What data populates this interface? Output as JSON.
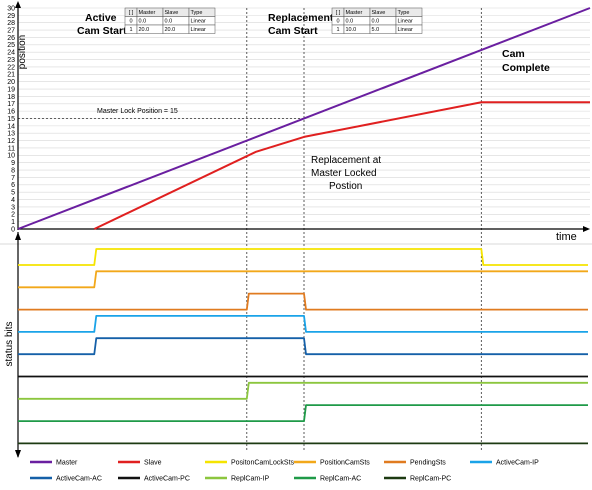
{
  "chart_data": {
    "type": "line",
    "top_panel": {
      "ylabel": "position",
      "xlabel": "time",
      "ylim": [
        0,
        30
      ],
      "xlim": [
        0,
        30
      ],
      "yticks": [
        "0",
        "1",
        "2",
        "3",
        "4",
        "5",
        "6",
        "7",
        "8",
        "9",
        "10",
        "11",
        "12",
        "13",
        "14",
        "15",
        "16",
        "17",
        "18",
        "19",
        "20",
        "21",
        "22",
        "23",
        "24",
        "25",
        "26",
        "27",
        "28",
        "29",
        "30"
      ],
      "series": [
        {
          "name": "Master",
          "color": "#6a1fa0",
          "points": [
            [
              0,
              0
            ],
            [
              30,
              30
            ]
          ]
        },
        {
          "name": "Slave",
          "color": "#e02020",
          "points": [
            [
              4,
              0
            ],
            [
              12.5,
              10.5
            ],
            [
              15,
              12.5
            ],
            [
              24.3,
              17.2
            ],
            [
              30,
              17.2
            ]
          ]
        }
      ],
      "lock_line": {
        "label": "Master Lock Position = 15",
        "y": 15
      },
      "events": [
        {
          "t": 12,
          "title_lines": [
            "Active",
            "Cam Start"
          ]
        },
        {
          "t": 15,
          "title_lines": [
            "Replacement",
            "Cam Start"
          ]
        },
        {
          "t": 24.3,
          "title_lines": [
            "Cam",
            "Complete"
          ]
        }
      ],
      "annotation_lines": [
        "Replacement at",
        "Master Locked",
        "Postion"
      ],
      "tables": [
        {
          "headers": [
            "[ ]",
            "Master",
            "Slave",
            "Type"
          ],
          "rows": [
            [
              "0",
              "0.0",
              "0.0",
              "Linear"
            ],
            [
              "1",
              "20.0",
              "20.0",
              "Linear"
            ]
          ]
        },
        {
          "headers": [
            "[ ]",
            "Master",
            "Slave",
            "Type"
          ],
          "rows": [
            [
              "0",
              "0.0",
              "0.0",
              "Linear"
            ],
            [
              "1",
              "10.0",
              "5.0",
              "Linear"
            ]
          ]
        }
      ]
    },
    "bottom_panel": {
      "ylabel": "status bits",
      "signals": [
        {
          "name": "PositonCamLockSts",
          "color": "#f5e400",
          "transitions": [
            [
              0,
              0
            ],
            [
              4,
              1
            ],
            [
              24.3,
              0
            ]
          ]
        },
        {
          "name": "PositionCamSts",
          "color": "#f2a81a",
          "transitions": [
            [
              0,
              0
            ],
            [
              4,
              1
            ]
          ]
        },
        {
          "name": "PendingSts",
          "color": "#e07b20",
          "transitions": [
            [
              0,
              0
            ],
            [
              12,
              1
            ],
            [
              15,
              0
            ]
          ]
        },
        {
          "name": "ActiveCam-IP",
          "color": "#1aa3e8",
          "transitions": [
            [
              0,
              0
            ],
            [
              4,
              1
            ],
            [
              15,
              0
            ]
          ]
        },
        {
          "name": "ActiveCam-AC",
          "color": "#1560a8",
          "transitions": [
            [
              0,
              0
            ],
            [
              4,
              1
            ],
            [
              15,
              0
            ]
          ]
        },
        {
          "name": "ActiveCam-PC",
          "color": "#111111",
          "transitions": [
            [
              0,
              0
            ]
          ]
        },
        {
          "name": "ReplCam-IP",
          "color": "#8cc63e",
          "transitions": [
            [
              0,
              0
            ],
            [
              12,
              1
            ]
          ]
        },
        {
          "name": "ReplCam-AC",
          "color": "#1f9a48",
          "transitions": [
            [
              0,
              0
            ],
            [
              15,
              1
            ]
          ]
        },
        {
          "name": "ReplCam-PC",
          "color": "#1d3a12",
          "transitions": [
            [
              0,
              0
            ]
          ]
        }
      ]
    },
    "legend": [
      {
        "name": "Master",
        "color": "#6a1fa0"
      },
      {
        "name": "Slave",
        "color": "#e02020"
      },
      {
        "name": "PositonCamLockSts",
        "color": "#f5e400"
      },
      {
        "name": "PositionCamSts",
        "color": "#f2a81a"
      },
      {
        "name": "PendingSts",
        "color": "#e07b20"
      },
      {
        "name": "ActiveCam-IP",
        "color": "#1aa3e8"
      },
      {
        "name": "ActiveCam-AC",
        "color": "#1560a8"
      },
      {
        "name": "ActiveCam-PC",
        "color": "#111111"
      },
      {
        "name": "ReplCam-IP",
        "color": "#8cc63e"
      },
      {
        "name": "ReplCam-AC",
        "color": "#1f9a48"
      },
      {
        "name": "ReplCam-PC",
        "color": "#1d3a12"
      }
    ]
  }
}
